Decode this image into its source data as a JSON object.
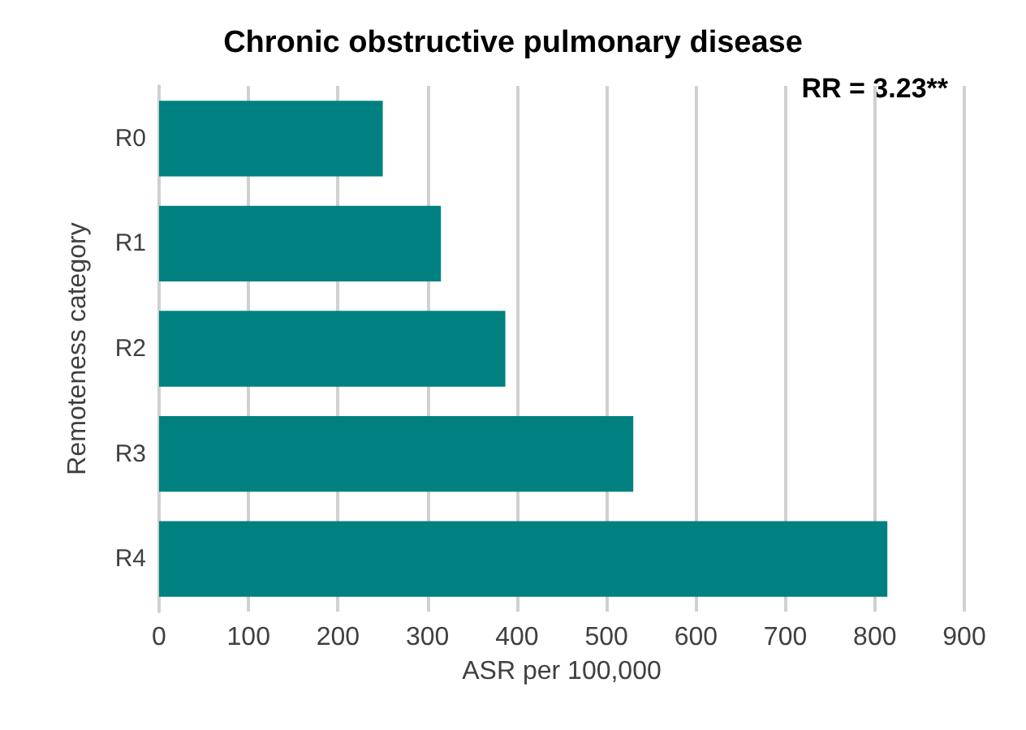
{
  "chart_data": {
    "type": "bar",
    "orientation": "horizontal",
    "title": "Chronic obstructive pulmonary disease",
    "xlabel": "ASR per 100,000",
    "ylabel": "Remoteness category",
    "categories": [
      "R0",
      "R1",
      "R2",
      "R3",
      "R4"
    ],
    "values": [
      250,
      315,
      387,
      530,
      814
    ],
    "color": "#008080",
    "xlim": [
      0,
      900
    ],
    "xticks": [
      0,
      100,
      200,
      300,
      400,
      500,
      600,
      700,
      800,
      900
    ],
    "grid": "x",
    "annotations": [
      "RR = 3.23**"
    ]
  }
}
